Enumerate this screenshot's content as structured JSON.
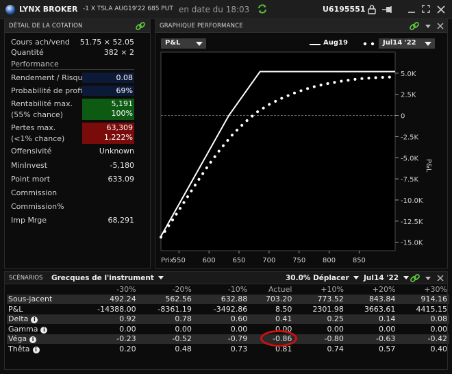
{
  "titlebar": {
    "brand": "LYNX BROKER",
    "contract": "-1 X TSLA AUG19'22 685 PUT",
    "date": "en date du 18:03",
    "account": "U6195551"
  },
  "left_panel": {
    "title": "DÉTAIL DE LA COTATION",
    "quote_rows": [
      {
        "label": "Cours ach/vend",
        "value": "51.75 × 52.05"
      },
      {
        "label": "Quantité",
        "value": "382 × 2"
      }
    ],
    "section_label": "Performance",
    "perf_rows": [
      {
        "label": "Rendement / Risque",
        "value": "0.08"
      },
      {
        "label": "Probabilité de profits",
        "value": "69%"
      }
    ],
    "max_profit": {
      "label1": "Rentabilité max.",
      "label2": "(55% chance)",
      "value1": "5,191",
      "value2": "100%",
      "color": "#0d5a12"
    },
    "max_loss": {
      "label1": "Pertes max.",
      "label2": "(<1% chance)",
      "value1": "63,309",
      "value2": "1,222%",
      "color": "#7a0b0b"
    },
    "other_rows": [
      {
        "label": "Offensivité",
        "value": "Unknown"
      },
      {
        "label": "MinInvest",
        "value": "-5,180"
      },
      {
        "label": "Point mort",
        "value": "633.09"
      },
      {
        "label": "Commission",
        "value": ""
      },
      {
        "label": "Commission%",
        "value": ""
      },
      {
        "label": "Imp Mrge",
        "value": "68,291"
      }
    ]
  },
  "right_panel": {
    "title": "GRAPHIQUE PERFORMANCE",
    "metric_select": "P&L",
    "legend_solid": "Aug19",
    "date_select": "Jul14 '22"
  },
  "chart_data": {
    "type": "line",
    "xlabel": "Prix:",
    "ylabel": "P&L",
    "x_ticks": [
      550,
      600,
      650,
      700,
      750,
      800,
      850
    ],
    "y_ticks": [
      "5.0K",
      "2.5K",
      "0",
      "-2.5K",
      "-5.0K",
      "-7.5K",
      "-10.0K",
      "-12.5K",
      "-15.0K"
    ],
    "y_tick_values": [
      5000,
      2500,
      0,
      -2500,
      -5000,
      -7500,
      -10000,
      -12500,
      -15000
    ],
    "xlim": [
      520,
      910
    ],
    "ylim": [
      -16000,
      7500
    ],
    "series": [
      {
        "name": "Aug19",
        "style": "solid",
        "color": "#ffffff",
        "x": [
          520,
          633.1,
          685,
          910
        ],
        "y": [
          -14300,
          0,
          5191,
          5191
        ]
      },
      {
        "name": "Jul14 '22",
        "style": "dotted",
        "color": "#ffffff",
        "x": [
          520,
          540,
          560,
          580,
          600,
          620,
          640,
          660,
          680,
          700,
          720,
          740,
          760,
          780,
          800,
          820,
          840,
          860,
          880,
          900,
          910
        ],
        "y": [
          -14400,
          -12300,
          -10100,
          -7900,
          -5800,
          -3900,
          -2200,
          -800,
          400,
          1300,
          2000,
          2600,
          3100,
          3500,
          3800,
          4050,
          4250,
          4400,
          4480,
          4530,
          4540
        ]
      }
    ]
  },
  "scenarios": {
    "title": "SCÉNARIOS",
    "greeks_select": "Grecques de l'instrument",
    "move_select": "30.0% Déplacer",
    "date_select": "Jul14 '22",
    "columns": [
      "-30%",
      "-20%",
      "-10%",
      "Actuel",
      "+10%",
      "+20%",
      "+30%"
    ],
    "rows": [
      {
        "name": "Sous-jacent",
        "info": false,
        "values": [
          "492.24",
          "562.56",
          "632.88",
          "703.20",
          "773.52",
          "843.84",
          "914.16"
        ]
      },
      {
        "name": "P&L",
        "info": false,
        "values": [
          "-14388.00",
          "-8361.19",
          "-3492.86",
          "8.50",
          "2301.98",
          "3663.61",
          "4415.15"
        ]
      },
      {
        "name": "Delta",
        "info": true,
        "values": [
          "0.92",
          "0.78",
          "0.60",
          "0.41",
          "0.25",
          "0.14",
          "0.08"
        ]
      },
      {
        "name": "Gamma",
        "info": true,
        "values": [
          "0.00",
          "0.00",
          "0.00",
          "0.00",
          "0.00",
          "0.00",
          "0.00"
        ]
      },
      {
        "name": "Véga",
        "info": true,
        "values": [
          "-0.23",
          "-0.52",
          "-0.79",
          "-0.86",
          "-0.80",
          "-0.63",
          "-0.42"
        ]
      },
      {
        "name": "Thêta",
        "info": true,
        "values": [
          "0.20",
          "0.48",
          "0.73",
          "0.81",
          "0.74",
          "0.57",
          "0.40"
        ]
      }
    ],
    "highlight_color": "#cc1111"
  },
  "colors": {
    "accent_green": "#5cc23c",
    "max_profit_bg": "#0d5a12",
    "max_loss_bg": "#7a0b0b",
    "perf_value_bg": "#0c1a38"
  }
}
